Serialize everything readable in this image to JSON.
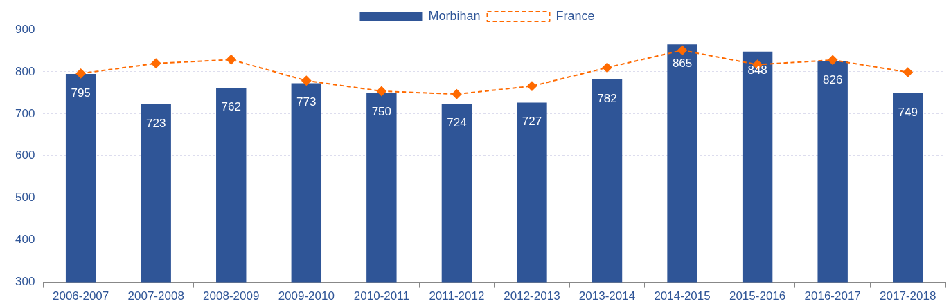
{
  "chart_data": {
    "type": "bar",
    "categories": [
      "2006-2007",
      "2007-2008",
      "2008-2009",
      "2009-2010",
      "2010-2011",
      "2011-2012",
      "2012-2013",
      "2013-2014",
      "2014-2015",
      "2015-2016",
      "2016-2017",
      "2017-2018"
    ],
    "series": [
      {
        "name": "Morbihan",
        "color": "#2f5597",
        "values": [
          795,
          723,
          762,
          773,
          750,
          724,
          727,
          782,
          865,
          848,
          826,
          749
        ],
        "value_labels": [
          "795",
          "723",
          "762",
          "773",
          "750",
          "724",
          "727",
          "782",
          "865",
          "848",
          "826",
          "749"
        ]
      },
      {
        "name": "France",
        "type": "line",
        "color": "#ff6a00",
        "marker": "diamond",
        "line_style": "dashed",
        "values": [
          796,
          820,
          829,
          779,
          754,
          747,
          766,
          810,
          851,
          817,
          828,
          799
        ]
      }
    ],
    "ylim": [
      300,
      900
    ],
    "yticks": [
      300,
      400,
      500,
      600,
      700,
      800,
      900
    ],
    "grid": "y",
    "legend": "top"
  }
}
